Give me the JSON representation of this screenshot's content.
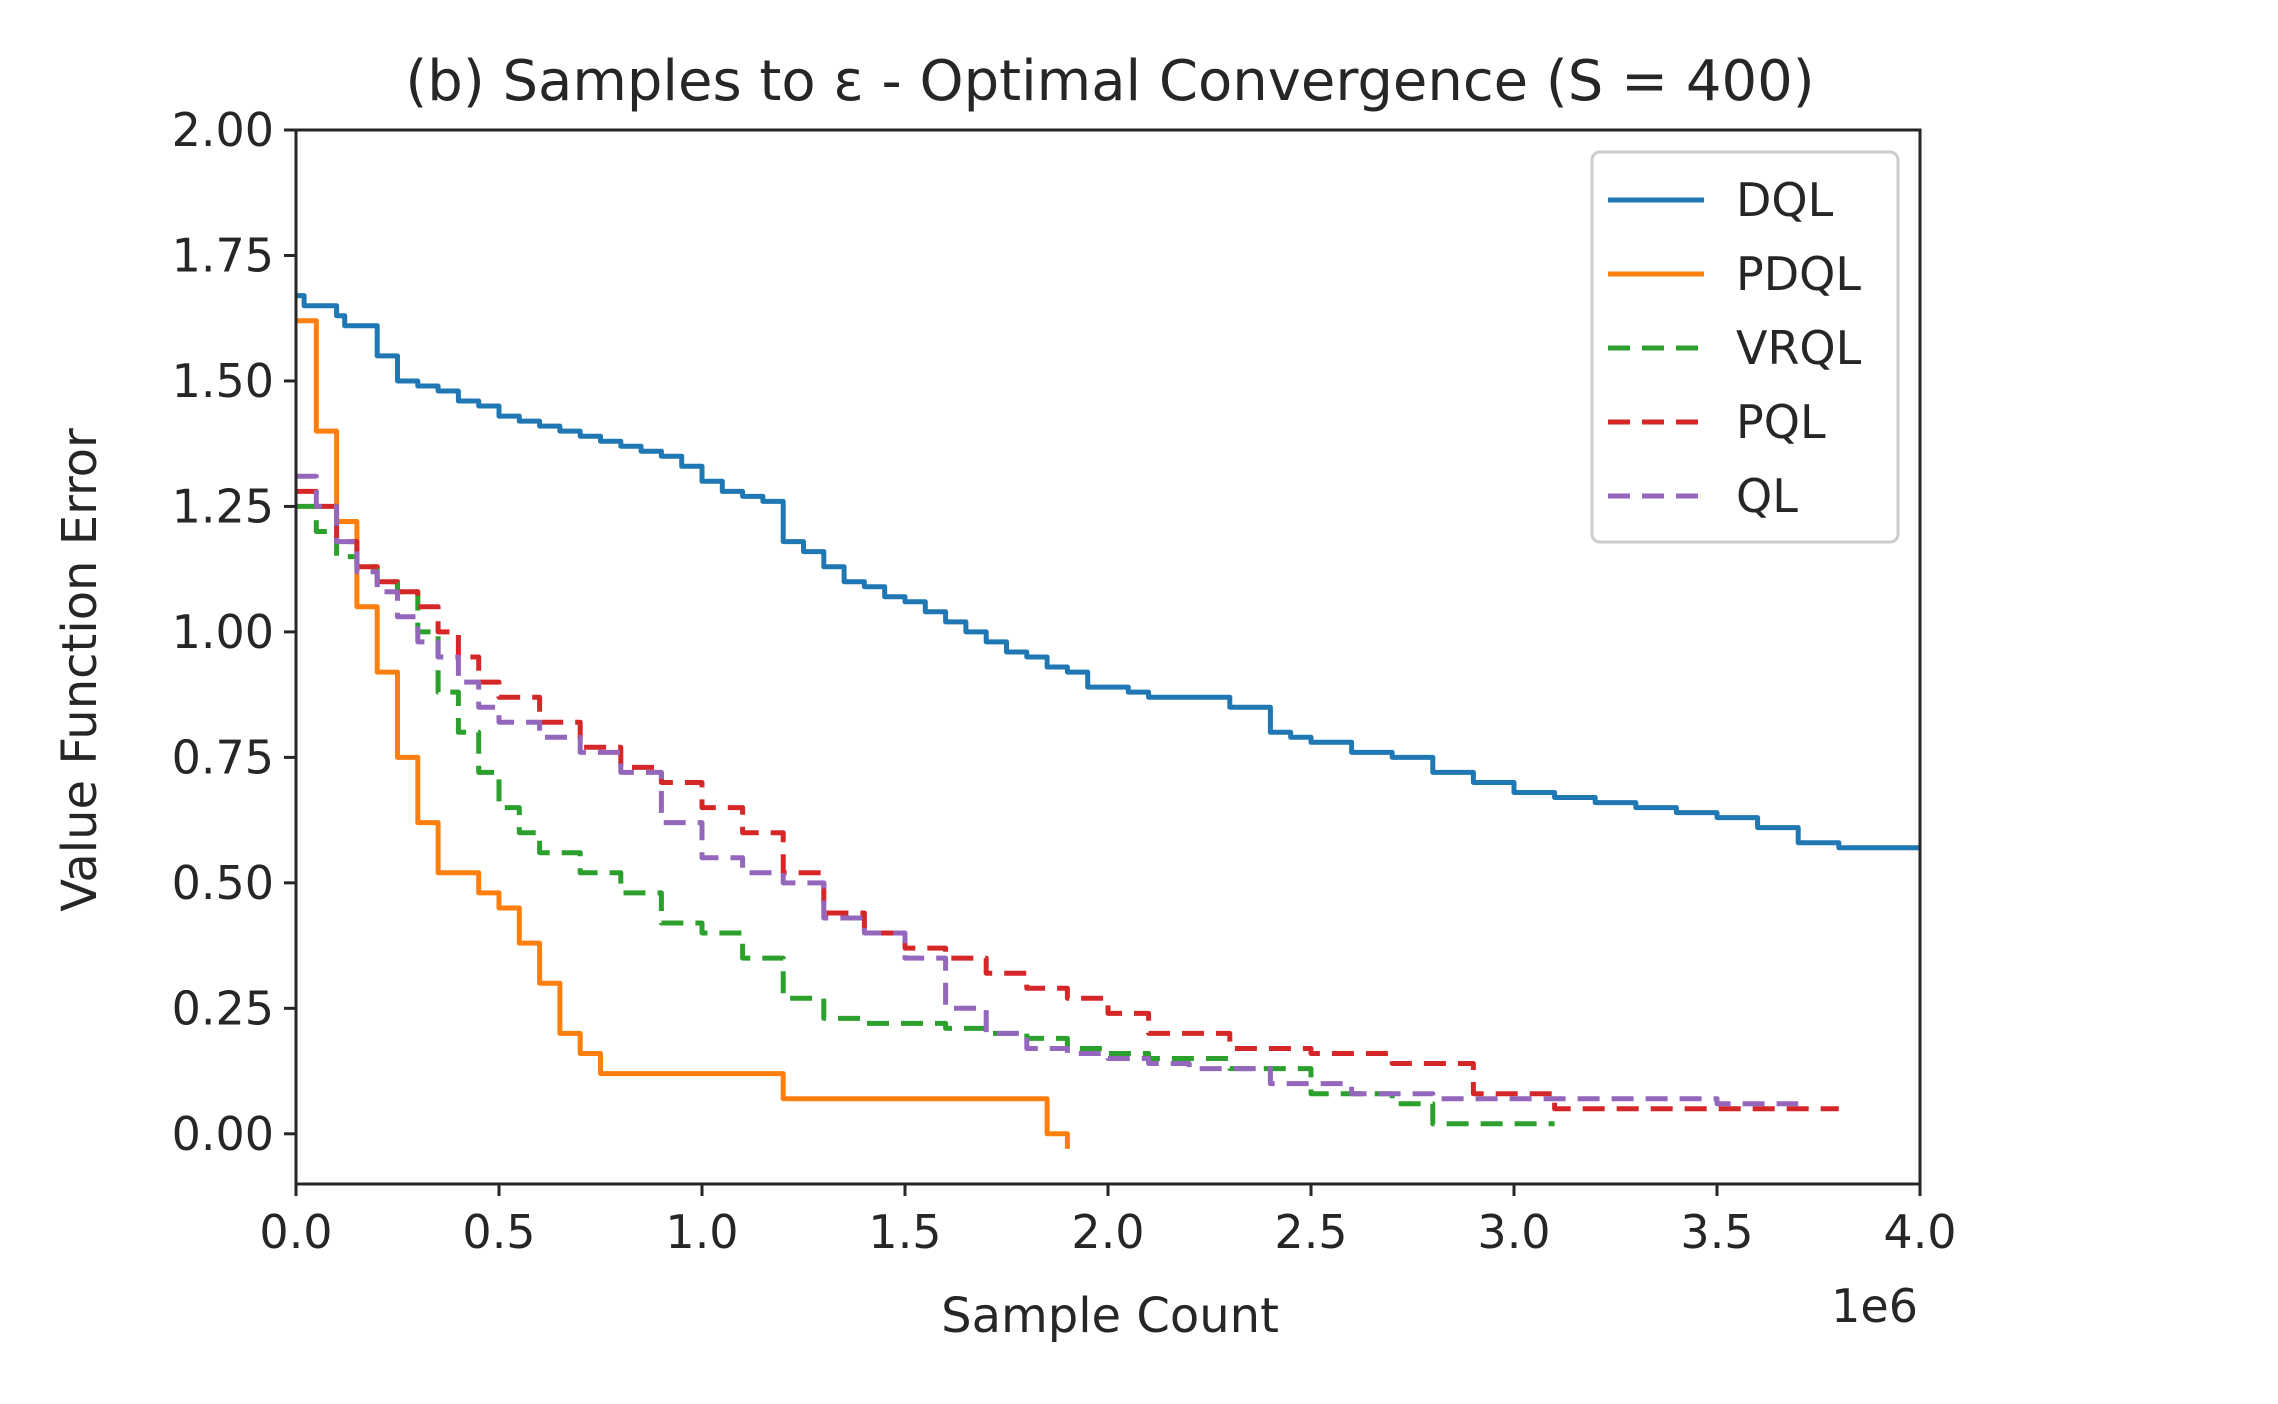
{
  "chart_data": {
    "type": "line",
    "title": "(b) Samples to ε - Optimal Convergence (S = 400)",
    "xlabel": "Sample Count",
    "ylabel": "Value Function Error",
    "x_multiplier": "1e6",
    "xlim": [
      0.0,
      4.0
    ],
    "ylim": [
      -0.1,
      2.0
    ],
    "x_ticks": [
      "0.0",
      "0.5",
      "1.0",
      "1.5",
      "2.0",
      "2.5",
      "3.0",
      "3.5",
      "4.0"
    ],
    "y_ticks": [
      "0.00",
      "0.25",
      "0.50",
      "0.75",
      "1.00",
      "1.25",
      "1.50",
      "1.75",
      "2.00"
    ],
    "grid": false,
    "legend_position": "top-right",
    "series": [
      {
        "name": "DQL",
        "color": "#1f77b4",
        "dash": "solid",
        "x": [
          0.0,
          0.02,
          0.1,
          0.12,
          0.2,
          0.25,
          0.3,
          0.35,
          0.4,
          0.45,
          0.5,
          0.55,
          0.6,
          0.65,
          0.7,
          0.75,
          0.8,
          0.85,
          0.9,
          0.95,
          1.0,
          1.05,
          1.1,
          1.15,
          1.2,
          1.25,
          1.3,
          1.35,
          1.4,
          1.45,
          1.5,
          1.55,
          1.6,
          1.65,
          1.7,
          1.75,
          1.8,
          1.85,
          1.9,
          1.95,
          2.0,
          2.05,
          2.1,
          2.2,
          2.3,
          2.4,
          2.45,
          2.5,
          2.6,
          2.7,
          2.8,
          2.9,
          3.0,
          3.1,
          3.2,
          3.3,
          3.4,
          3.5,
          3.6,
          3.65,
          3.7,
          3.8,
          3.9,
          4.0
        ],
        "y": [
          1.67,
          1.65,
          1.63,
          1.61,
          1.55,
          1.5,
          1.49,
          1.48,
          1.46,
          1.45,
          1.43,
          1.42,
          1.41,
          1.4,
          1.39,
          1.38,
          1.37,
          1.36,
          1.35,
          1.33,
          1.3,
          1.28,
          1.27,
          1.26,
          1.18,
          1.16,
          1.13,
          1.1,
          1.09,
          1.07,
          1.06,
          1.04,
          1.02,
          1.0,
          0.98,
          0.96,
          0.95,
          0.93,
          0.92,
          0.89,
          0.89,
          0.88,
          0.87,
          0.87,
          0.85,
          0.8,
          0.79,
          0.78,
          0.76,
          0.75,
          0.72,
          0.7,
          0.68,
          0.67,
          0.66,
          0.65,
          0.64,
          0.63,
          0.61,
          0.61,
          0.58,
          0.57,
          0.57,
          0.57
        ]
      },
      {
        "name": "PDQL",
        "color": "#ff7f0e",
        "dash": "solid",
        "x": [
          0.0,
          0.05,
          0.1,
          0.15,
          0.2,
          0.25,
          0.3,
          0.35,
          0.4,
          0.45,
          0.5,
          0.55,
          0.6,
          0.65,
          0.7,
          0.75,
          0.85,
          1.0,
          1.2,
          1.25,
          1.5,
          1.8,
          1.85,
          1.9
        ],
        "y": [
          1.62,
          1.4,
          1.22,
          1.05,
          0.92,
          0.75,
          0.62,
          0.52,
          0.52,
          0.48,
          0.45,
          0.38,
          0.3,
          0.2,
          0.16,
          0.12,
          0.12,
          0.12,
          0.07,
          0.07,
          0.07,
          0.07,
          0.0,
          -0.03
        ]
      },
      {
        "name": "VRQL",
        "color": "#2ca02c",
        "dash": "dashed",
        "x": [
          0.0,
          0.05,
          0.1,
          0.15,
          0.2,
          0.25,
          0.3,
          0.35,
          0.4,
          0.45,
          0.5,
          0.55,
          0.6,
          0.7,
          0.8,
          0.9,
          1.0,
          1.1,
          1.2,
          1.3,
          1.4,
          1.5,
          1.6,
          1.7,
          1.8,
          1.9,
          2.0,
          2.1,
          2.3,
          2.5,
          2.7,
          2.8,
          3.1
        ],
        "y": [
          1.25,
          1.2,
          1.15,
          1.13,
          1.1,
          1.08,
          1.0,
          0.88,
          0.8,
          0.72,
          0.65,
          0.6,
          0.56,
          0.52,
          0.48,
          0.42,
          0.4,
          0.35,
          0.27,
          0.23,
          0.22,
          0.22,
          0.21,
          0.2,
          0.19,
          0.17,
          0.16,
          0.15,
          0.13,
          0.08,
          0.06,
          0.02,
          0.02
        ]
      },
      {
        "name": "PQL",
        "color": "#d62728",
        "dash": "dashed",
        "x": [
          0.0,
          0.05,
          0.1,
          0.15,
          0.2,
          0.25,
          0.3,
          0.35,
          0.4,
          0.45,
          0.5,
          0.6,
          0.7,
          0.8,
          0.9,
          1.0,
          1.1,
          1.2,
          1.3,
          1.4,
          1.5,
          1.6,
          1.7,
          1.8,
          1.9,
          2.0,
          2.1,
          2.3,
          2.5,
          2.7,
          2.9,
          3.1,
          3.3,
          3.5,
          3.8
        ],
        "y": [
          1.28,
          1.25,
          1.18,
          1.13,
          1.1,
          1.08,
          1.05,
          1.0,
          0.95,
          0.9,
          0.87,
          0.82,
          0.77,
          0.73,
          0.7,
          0.65,
          0.6,
          0.52,
          0.44,
          0.4,
          0.37,
          0.35,
          0.32,
          0.29,
          0.27,
          0.24,
          0.2,
          0.17,
          0.16,
          0.14,
          0.08,
          0.05,
          0.05,
          0.05,
          0.05
        ]
      },
      {
        "name": "QL",
        "color": "#9467bd",
        "dash": "dashed",
        "x": [
          0.0,
          0.05,
          0.1,
          0.15,
          0.2,
          0.25,
          0.3,
          0.35,
          0.4,
          0.45,
          0.5,
          0.6,
          0.7,
          0.8,
          0.9,
          1.0,
          1.1,
          1.2,
          1.3,
          1.4,
          1.5,
          1.6,
          1.7,
          1.8,
          1.9,
          2.0,
          2.1,
          2.2,
          2.4,
          2.6,
          2.8,
          3.0,
          3.3,
          3.5,
          3.7
        ],
        "y": [
          1.31,
          1.25,
          1.18,
          1.12,
          1.08,
          1.03,
          0.98,
          0.95,
          0.9,
          0.85,
          0.82,
          0.79,
          0.76,
          0.72,
          0.62,
          0.55,
          0.52,
          0.5,
          0.43,
          0.4,
          0.35,
          0.25,
          0.2,
          0.17,
          0.16,
          0.15,
          0.14,
          0.13,
          0.1,
          0.08,
          0.07,
          0.07,
          0.07,
          0.06,
          0.06
        ]
      }
    ]
  }
}
